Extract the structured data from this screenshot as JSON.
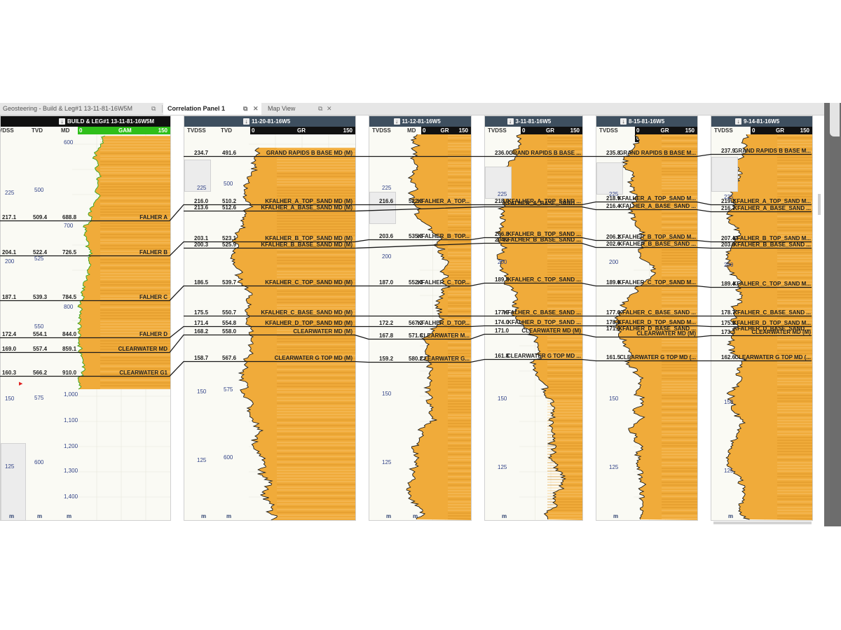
{
  "tabs": [
    {
      "label": "Geosteering - Build & Leg#1 13-11-81-16W5M",
      "active": false
    },
    {
      "label": "Correlation Panel 1",
      "active": true
    },
    {
      "label": "Map View",
      "active": false
    }
  ],
  "colors": {
    "fill": "#f0ab3a",
    "gam_bar": "#2fbf1a",
    "header": "#3e4f5f"
  },
  "wells": [
    {
      "id": "w0",
      "title": "BUILD & LEG#1 13-11-81-16W5M",
      "left": 0,
      "width": 242,
      "dark": true,
      "columns": [
        "TVDSS",
        "TVD",
        "MD"
      ],
      "curve": "GAM",
      "curve_min": "0",
      "curve_max": "150",
      "md_scale": [
        "600",
        "700",
        "800",
        "1,000",
        "1,100",
        "1,200",
        "1,300",
        "1,400"
      ],
      "tvdss_scale": [
        "225",
        "200",
        "150",
        "125"
      ],
      "tvd_scale": [
        "500",
        "525",
        "550",
        "575",
        "600"
      ],
      "units": [
        "m",
        "m",
        "m"
      ],
      "tops": [
        {
          "tvdss": "217.1",
          "tvd": "509.4",
          "md": "688.8",
          "name": "FALHER A"
        },
        {
          "tvdss": "204.1",
          "tvd": "522.4",
          "md": "726.5",
          "name": "FALHER B"
        },
        {
          "tvdss": "187.1",
          "tvd": "539.3",
          "md": "784.5",
          "name": "FALHER C"
        },
        {
          "tvdss": "172.4",
          "tvd": "554.1",
          "md": "844.0",
          "name": "FALHER D"
        },
        {
          "tvdss": "169.0",
          "tvd": "557.4",
          "md": "859.1",
          "name": "CLEARWATER MD"
        },
        {
          "tvdss": "160.3",
          "tvd": "566.2",
          "md": "910.0",
          "name": "CLEARWATER G1"
        }
      ]
    },
    {
      "id": "w1",
      "title": "11-20-81-16W5",
      "left": 262,
      "width": 244,
      "dark": false,
      "columns": [
        "TVDSS",
        "TVD"
      ],
      "curve": "GR",
      "curve_min": "0",
      "curve_max": "150",
      "tvdss_scale": [
        "225",
        "150",
        "125"
      ],
      "tvd_scale": [
        "500",
        "575",
        "600"
      ],
      "units": [
        "m",
        "m"
      ],
      "tops": [
        {
          "tvdss": "234.7",
          "tvd": "491.6",
          "name": "GRAND RAPIDS B BASE MD (M)"
        },
        {
          "tvdss": "216.0",
          "tvd": "510.2",
          "name": "KFALHER_A_TOP_SAND MD (M)"
        },
        {
          "tvdss": "213.6",
          "tvd": "512.6",
          "name": "KFALHER_A_BASE_SAND MD (M)"
        },
        {
          "tvdss": "203.1",
          "tvd": "523.1",
          "name": "KFALHER_B_TOP_SAND MD (M)"
        },
        {
          "tvdss": "200.3",
          "tvd": "525.9",
          "name": "KFALHER_B_BASE_SAND MD (M)"
        },
        {
          "tvdss": "186.5",
          "tvd": "539.7",
          "name": "KFALHER_C_TOP_SAND MD (M)"
        },
        {
          "tvdss": "175.5",
          "tvd": "550.7",
          "name": "KFALHER_C_BASE_SAND MD (M)"
        },
        {
          "tvdss": "171.4",
          "tvd": "554.8",
          "name": "KFALHER_D_TOP_SAND MD (M)"
        },
        {
          "tvdss": "168.2",
          "tvd": "558.0",
          "name": "CLEARWATER MD (M)"
        },
        {
          "tvdss": "158.7",
          "tvd": "567.6",
          "name": "CLEARWATER G TOP MD (M)"
        }
      ]
    },
    {
      "id": "w2",
      "title": "11-12-81-16W5",
      "left": 526,
      "width": 145,
      "dark": false,
      "columns": [
        "TVDSS",
        "MD"
      ],
      "curve": "GR",
      "curve_min": "0",
      "curve_max": "150",
      "tvdss_scale": [
        "225",
        "200",
        "150",
        "125"
      ],
      "tvd_scale": [],
      "units": [
        "m",
        "m"
      ],
      "tops": [
        {
          "tvdss": "216.6",
          "tvd": "522.8",
          "name": "KFALHER_A_TOP..."
        },
        {
          "tvdss": "203.6",
          "tvd": "535.8",
          "name": "KFALHER_B_TOP..."
        },
        {
          "tvdss": "187.0",
          "tvd": "552.4",
          "name": "KFALHER_C_TOP..."
        },
        {
          "tvdss": "172.2",
          "tvd": "567.2",
          "name": "KFALHER_D_TOP..."
        },
        {
          "tvdss": "167.8",
          "tvd": "571.6",
          "name": "CLEARWATER M..."
        },
        {
          "tvdss": "159.2",
          "tvd": "580.2",
          "name": "CLEARWATER G..."
        }
      ]
    },
    {
      "id": "w3",
      "title": "3-11-81-16W5",
      "left": 691,
      "width": 139,
      "dark": false,
      "columns": [
        "TVDSS"
      ],
      "curve": "GR",
      "curve_min": "0",
      "curve_max": "150",
      "tvdss_scale": [
        "225",
        "200",
        "150",
        "125"
      ],
      "tvd_scale": [],
      "units": [
        "m"
      ],
      "tops": [
        {
          "tvdss": "236.0",
          "name": "GRAND RAPIDS B BASE ..."
        },
        {
          "tvdss": "218.9",
          "name": "KFALHER_A_TOP_SAND ..."
        },
        {
          "tvdss": "",
          "name": "KFALHER_A_BASE_SAND ..."
        },
        {
          "tvdss": "206.8",
          "name": "KFALHER_B_TOP_SAND ..."
        },
        {
          "tvdss": "204.2",
          "name": "KFALHER_B_BASE_SAND ..."
        },
        {
          "tvdss": "189.8",
          "name": "KFALHER_C_TOP_SAND ..."
        },
        {
          "tvdss": "177.9",
          "name": "KFALHER_C_BASE_SAND ..."
        },
        {
          "tvdss": "174.0",
          "name": "KFALHER_D_TOP_SAND ..."
        },
        {
          "tvdss": "171.0",
          "name": "CLEARWATER MD (M)"
        },
        {
          "tvdss": "161.8",
          "name": "CLEARWATER G TOP MD ..."
        }
      ]
    },
    {
      "id": "w4",
      "title": "8-15-81-16W5",
      "left": 850,
      "width": 144,
      "dark": false,
      "columns": [
        "TVDSS"
      ],
      "curve": "GR",
      "curve_min": "0",
      "curve_max": "150",
      "tvdss_scale": [
        "225",
        "200",
        "150",
        "125"
      ],
      "tvd_scale": [],
      "units": [
        "m"
      ],
      "tops": [
        {
          "tvdss": "235.8",
          "name": "GRAND RAPIDS B BASE M..."
        },
        {
          "tvdss": "218.9",
          "name": "KFALHER_A_TOP_SAND M..."
        },
        {
          "tvdss": "216.4",
          "name": "KFALHER_A_BASE_SAND ..."
        },
        {
          "tvdss": "206.2",
          "name": "KFALHER_B_TOP_SAND M..."
        },
        {
          "tvdss": "202.6",
          "name": "KFALHER_B_BASE_SAND ..."
        },
        {
          "tvdss": "189.0",
          "name": "KFALHER_C_TOP_SAND M..."
        },
        {
          "tvdss": "177.6",
          "name": "KFALHER_C_BASE_SAND ..."
        },
        {
          "tvdss": "173.9",
          "name": "KFALHER_D_TOP_SAND M..."
        },
        {
          "tvdss": "171.6",
          "name": "KFALHER_D_BASE_SAND ..."
        },
        {
          "tvdss": "",
          "name": "CLEARWATER MD (M)"
        },
        {
          "tvdss": "161.5",
          "name": "CLEARWATER G TOP MD (..."
        }
      ]
    },
    {
      "id": "w5",
      "title": "9-14-81-16W5",
      "left": 1014,
      "width": 144,
      "dark": false,
      "columns": [
        "TVDSS"
      ],
      "curve": "GR",
      "curve_min": "0",
      "curve_max": "150",
      "tvdss_scale": [
        "225",
        "200",
        "150",
        "125"
      ],
      "tvd_scale": [],
      "units": [
        "m"
      ],
      "tops": [
        {
          "tvdss": "237.9",
          "name": "GRAND RAPIDS B BASE M..."
        },
        {
          "tvdss": "219.2",
          "name": "KFALHER_A_TOP_SAND M..."
        },
        {
          "tvdss": "216.7",
          "name": "KFALHER_A_BASE_SAND ..."
        },
        {
          "tvdss": "207.4",
          "name": "KFALHER_B_TOP_SAND M..."
        },
        {
          "tvdss": "203.8",
          "name": "KFALHER_B_BASE_SAND ..."
        },
        {
          "tvdss": "189.4",
          "name": "KFALHER_C_TOP_SAND M..."
        },
        {
          "tvdss": "178.7",
          "name": "KFALHER_C_BASE_SAND ..."
        },
        {
          "tvdss": "175.2",
          "name": "KFALHER_D_TOP_SAND M..."
        },
        {
          "tvdss": "",
          "name": "KFALHER_D_BASE_SAND ..."
        },
        {
          "tvdss": "173.3",
          "name": "CLEARWATER MD (M)"
        },
        {
          "tvdss": "162.6",
          "name": "CLEARWATER G TOP MD (..."
        }
      ]
    }
  ],
  "second_curve": {
    "well": "w4",
    "name": "GR",
    "min": "0",
    "max": "150"
  }
}
